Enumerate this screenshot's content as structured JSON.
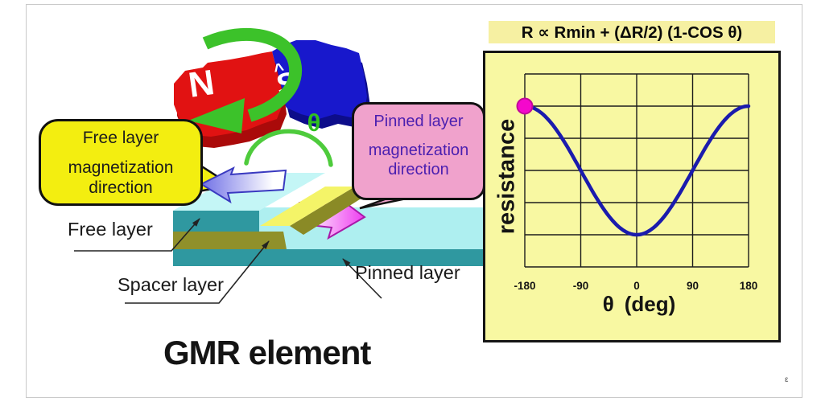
{
  "formula_banner": {
    "text": "R ∝ Rmin + (⁄ΔR/2⁄) (1-COS θ)",
    "display": "R ∝ Rmin + (⯿R/2) (1-COS θ)",
    "text_plain": "R ∝ Rmin + (ΔR/2) (1-COS θ)"
  },
  "diagram": {
    "title": "GMR element",
    "magnet": {
      "north_label": "N",
      "south_label": "S",
      "south_accent": "^",
      "angle_label": "θ"
    },
    "callouts": {
      "free": {
        "line1": "Free layer",
        "line2": "magnetization direction"
      },
      "pinned": {
        "line1": "Pinned layer",
        "line2": "magnetization direction"
      }
    },
    "layer_labels": {
      "free": "Free layer",
      "spacer": "Spacer layer",
      "pinned": "Pinned layer"
    },
    "colors": {
      "magnet_north": "#e11212",
      "magnet_south": "#1818cc",
      "rotation_arrow": "#3cc22a",
      "free_arrow": "#7070e6",
      "pinned_arrow": "#ee3cf0",
      "layer_top": "#b9f2f0",
      "layer_front": "#2f98a0",
      "spacer": "#90902a",
      "spacer_top": "#f4f468",
      "callout_free_bg": "#f3ee10",
      "callout_pinned_bg": "#f0a2cc"
    }
  },
  "chart_data": {
    "type": "line",
    "title": "R ∝ Rmin + (ΔR/2) (1-COS θ)",
    "xlabel": "θ (deg)",
    "ylabel": "resistance",
    "x_range": [
      -180,
      180
    ],
    "x_ticks": [
      -180,
      -90,
      0,
      90,
      180
    ],
    "x_tick_labels": [
      "-180",
      "-90",
      "0",
      "90",
      "180"
    ],
    "grid": {
      "columns": 4,
      "rows": 6,
      "on": true
    },
    "curve": {
      "equation": "R_norm = (1 - cos(theta)) / 2",
      "points": [
        {
          "theta": -180,
          "r_norm": 1.0
        },
        {
          "theta": -135,
          "r_norm": 0.854
        },
        {
          "theta": -90,
          "r_norm": 0.5
        },
        {
          "theta": -45,
          "r_norm": 0.146
        },
        {
          "theta": 0,
          "r_norm": 0.0
        },
        {
          "theta": 45,
          "r_norm": 0.146
        },
        {
          "theta": 90,
          "r_norm": 0.5
        },
        {
          "theta": 135,
          "r_norm": 0.854
        },
        {
          "theta": 180,
          "r_norm": 1.0
        }
      ],
      "color": "#1b1bad"
    },
    "marker": {
      "theta": -180,
      "r_norm": 1.0,
      "color": "#f408cc",
      "edge": "#c00898"
    },
    "panel_bg": "#f8f8a2",
    "legend": null
  },
  "footer": {
    "mark": "ε"
  }
}
